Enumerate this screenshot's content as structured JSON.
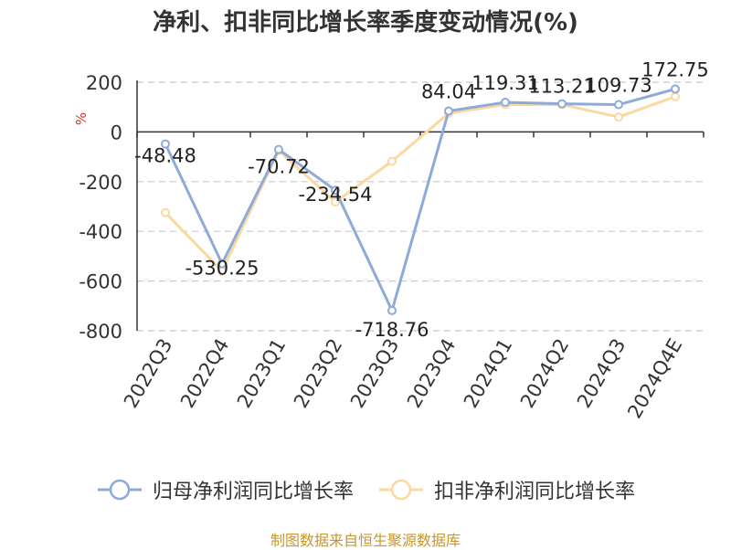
{
  "title": "净利、扣非同比增长率季度变动情况(%)",
  "source": "制图数据来自恒生聚源数据库",
  "chart_data": {
    "type": "line",
    "ylabel": "%",
    "ylim": [
      -800,
      200
    ],
    "yticks": [
      200,
      0,
      -200,
      -400,
      -600,
      -800
    ],
    "grid": true,
    "legend_position": "bottom",
    "categories": [
      "2022Q3",
      "2022Q4",
      "2023Q1",
      "2023Q2",
      "2023Q3",
      "2023Q4",
      "2024Q1",
      "2024Q2",
      "2024Q3",
      "2024Q4E"
    ],
    "series": [
      {
        "name": "归母净利润同比增长率",
        "color": "#8eaad8",
        "values": [
          -48.48,
          -530.25,
          -70.72,
          -234.54,
          -718.76,
          84.04,
          119.31,
          113.21,
          109.73,
          172.75
        ],
        "labels": [
          "-48.48",
          "-530.25",
          "-70.72",
          "-234.54",
          "-718.76",
          "84.04",
          "119.31",
          "113.21",
          "109.73",
          "172.75"
        ]
      },
      {
        "name": "扣非净利润同比增长率",
        "color": "#fbd8a0",
        "values": [
          -325,
          -560,
          -75,
          -282,
          -118,
          75,
          110,
          110,
          60,
          142
        ]
      }
    ]
  }
}
